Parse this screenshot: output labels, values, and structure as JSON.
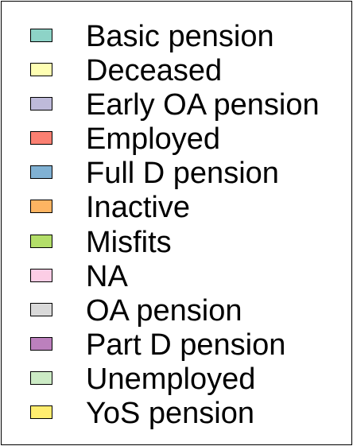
{
  "chart_data": {
    "type": "legend",
    "legend_entries": [
      {
        "label": "Basic pension",
        "color": "#8dd3c7"
      },
      {
        "label": "Deceased",
        "color": "#ffffb3"
      },
      {
        "label": "Early OA pension",
        "color": "#bebada"
      },
      {
        "label": "Employed",
        "color": "#fb8072"
      },
      {
        "label": "Full D pension",
        "color": "#80b1d3"
      },
      {
        "label": "Inactive",
        "color": "#fdb462"
      },
      {
        "label": "Misfits",
        "color": "#b3de69"
      },
      {
        "label": "NA",
        "color": "#fccde5"
      },
      {
        "label": "OA pension",
        "color": "#d9d9d9"
      },
      {
        "label": "Part D pension",
        "color": "#bc80bd"
      },
      {
        "label": "Unemployed",
        "color": "#ccebc5"
      },
      {
        "label": "YoS pension",
        "color": "#ffed6f"
      }
    ]
  }
}
